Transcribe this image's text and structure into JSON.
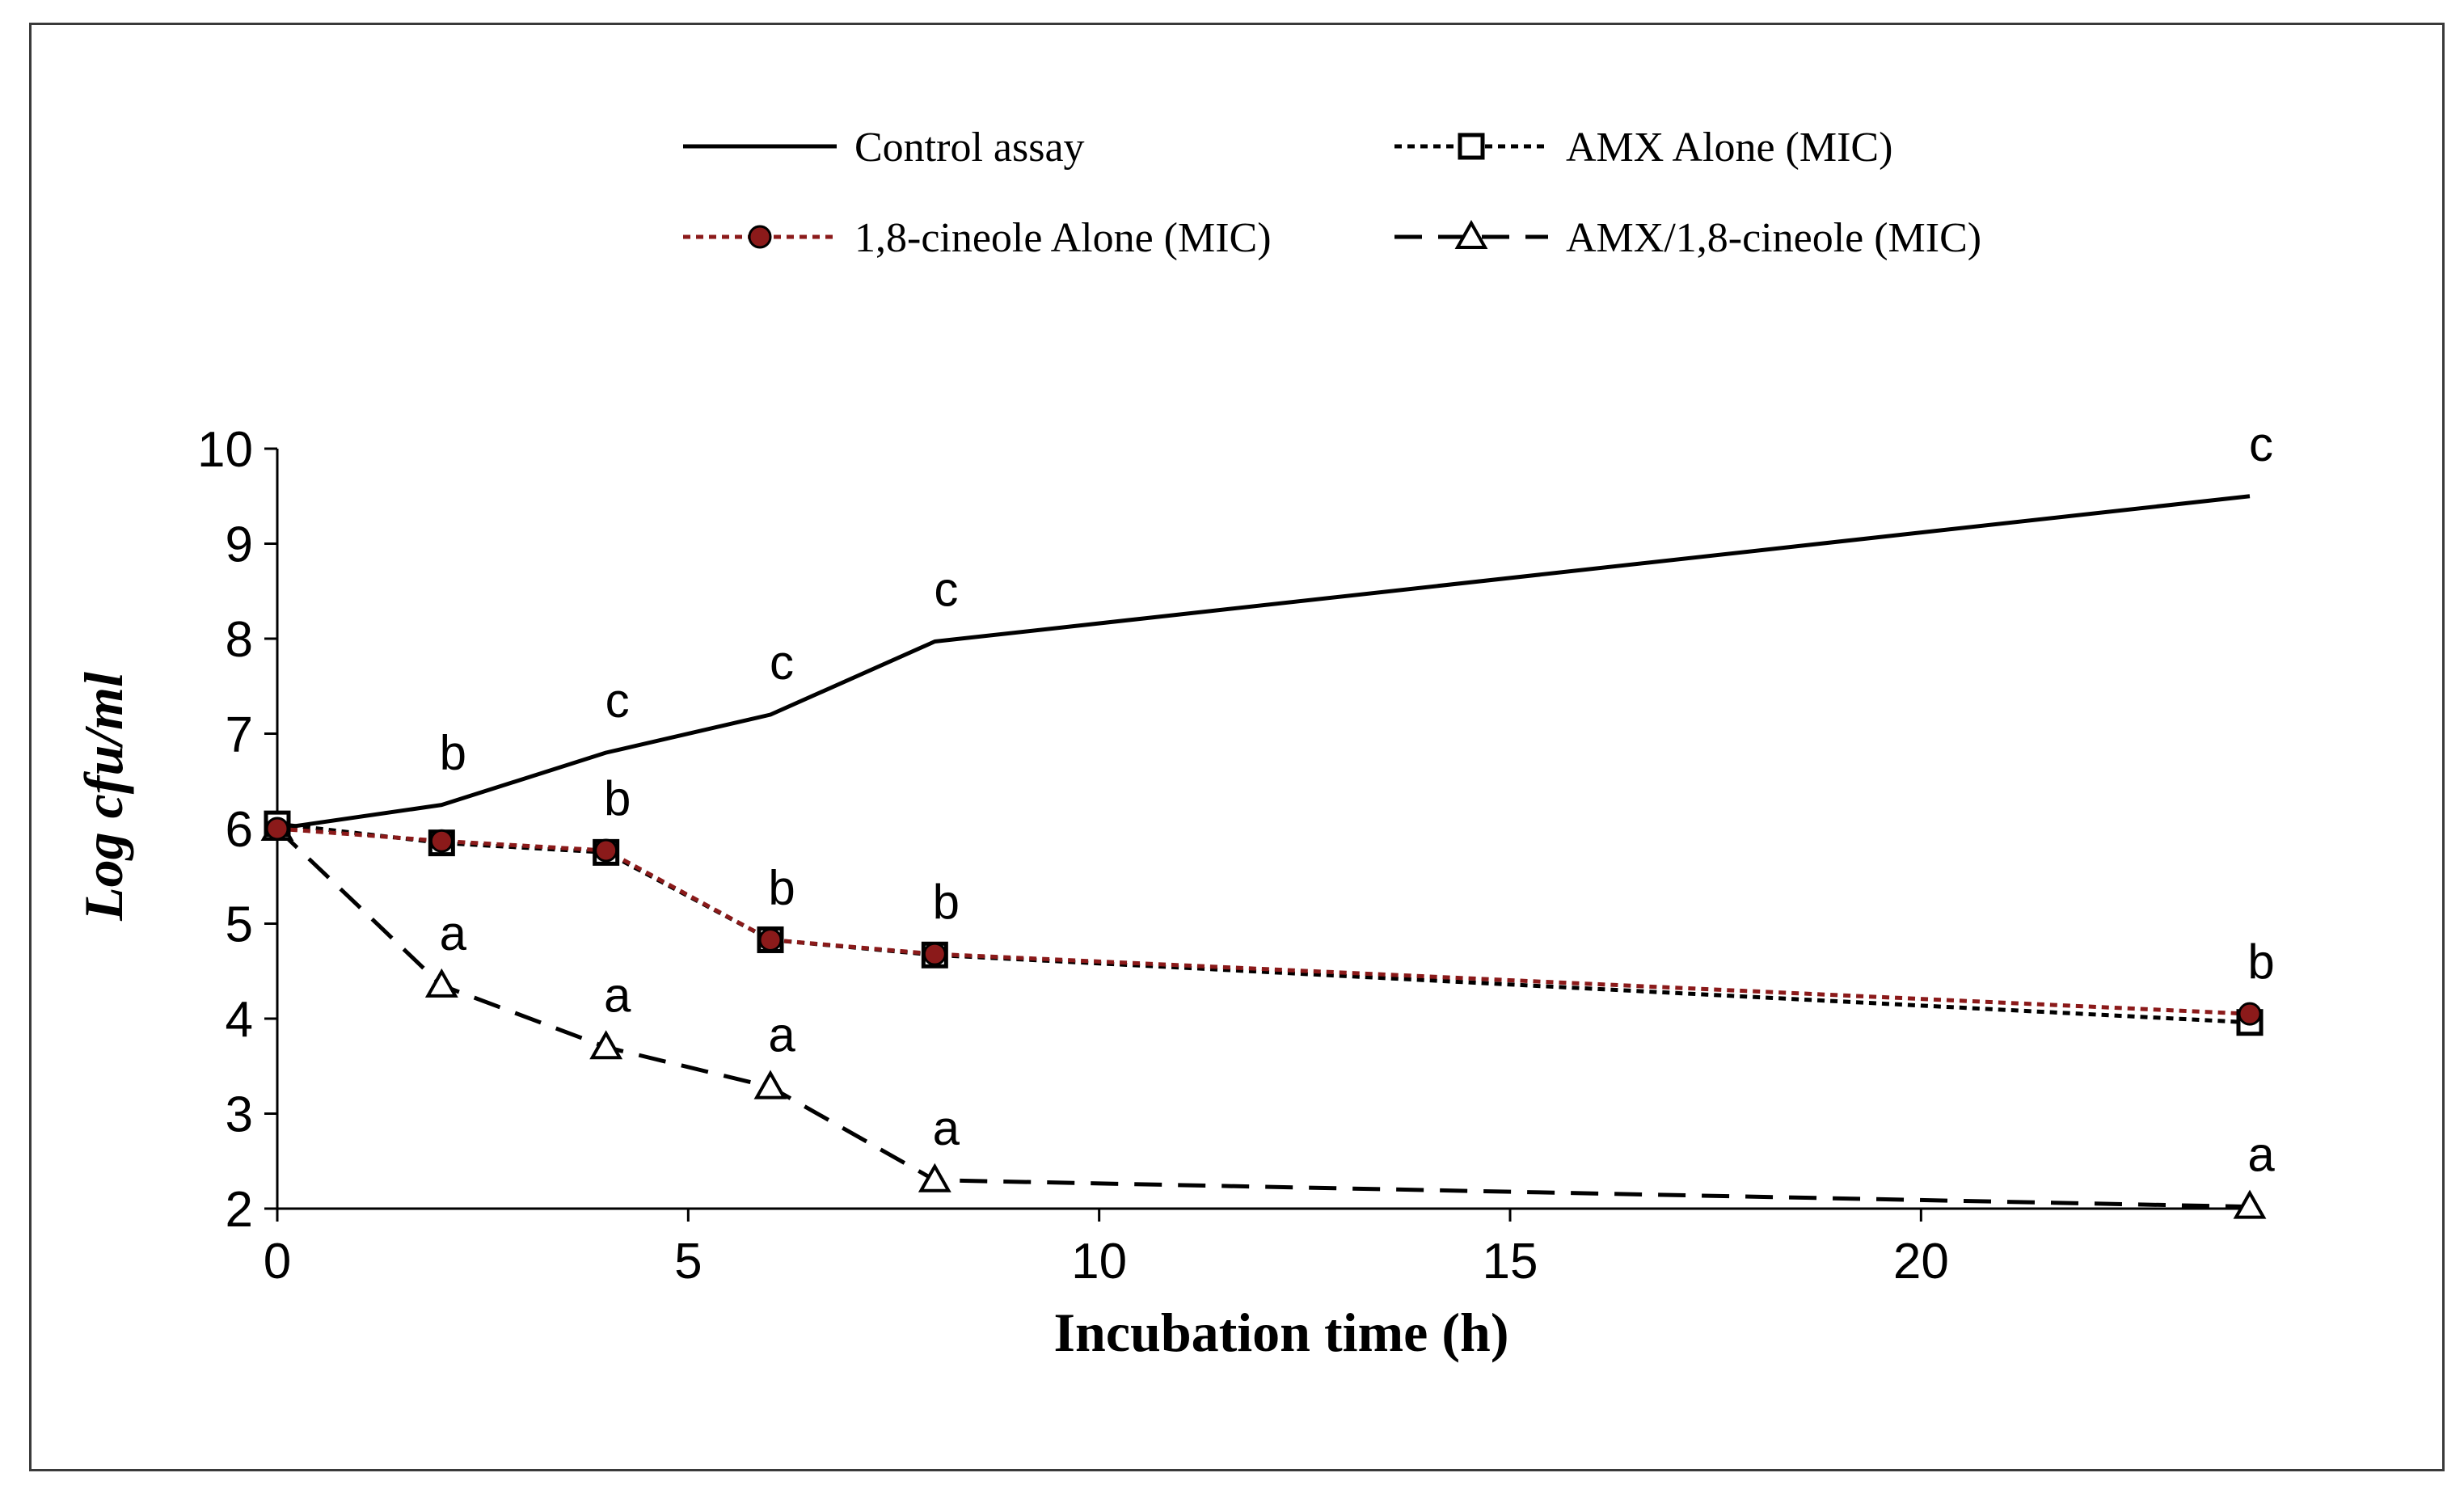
{
  "chart_data": {
    "type": "line",
    "title": "",
    "xlabel": "Incubation time (h)",
    "ylabel": "Log cfu/ml",
    "xlim": [
      0,
      24
    ],
    "ylim": [
      2,
      10
    ],
    "xticks": [
      0,
      5,
      10,
      15,
      20
    ],
    "yticks": [
      2,
      3,
      4,
      5,
      6,
      7,
      8,
      9,
      10
    ],
    "grid": false,
    "legend_position": "top",
    "x": [
      0,
      2,
      4,
      6,
      8,
      24
    ],
    "series": [
      {
        "name": "Control assay",
        "values": [
          6.0,
          6.25,
          6.8,
          7.2,
          7.97,
          9.5
        ],
        "color": "#000000",
        "line": "solid",
        "marker": "none",
        "labels": [
          "",
          "b",
          "c",
          "c",
          "c",
          "c"
        ]
      },
      {
        "name": "AMX Alone (MIC)",
        "values": [
          6.05,
          5.85,
          5.75,
          4.83,
          4.67,
          3.96
        ],
        "color": "#000000",
        "line": "dotted",
        "marker": "square",
        "labels": [
          "",
          "",
          "",
          "",
          "",
          ""
        ]
      },
      {
        "name": "1,8-cineole Alone (MIC)",
        "values": [
          6.0,
          5.87,
          5.77,
          4.83,
          4.68,
          4.05
        ],
        "color": "#8b1a1a",
        "line": "dotted",
        "marker": "circle",
        "labels": [
          "",
          "",
          "b",
          "b",
          "b",
          "b"
        ]
      },
      {
        "name": "AMX/1,8-cineole (MIC)",
        "values": [
          6.0,
          4.35,
          3.7,
          3.28,
          2.3,
          2.02
        ],
        "color": "#000000",
        "line": "dashed",
        "marker": "triangle",
        "labels": [
          "",
          "a",
          "a",
          "a",
          "a",
          "a"
        ]
      }
    ]
  }
}
